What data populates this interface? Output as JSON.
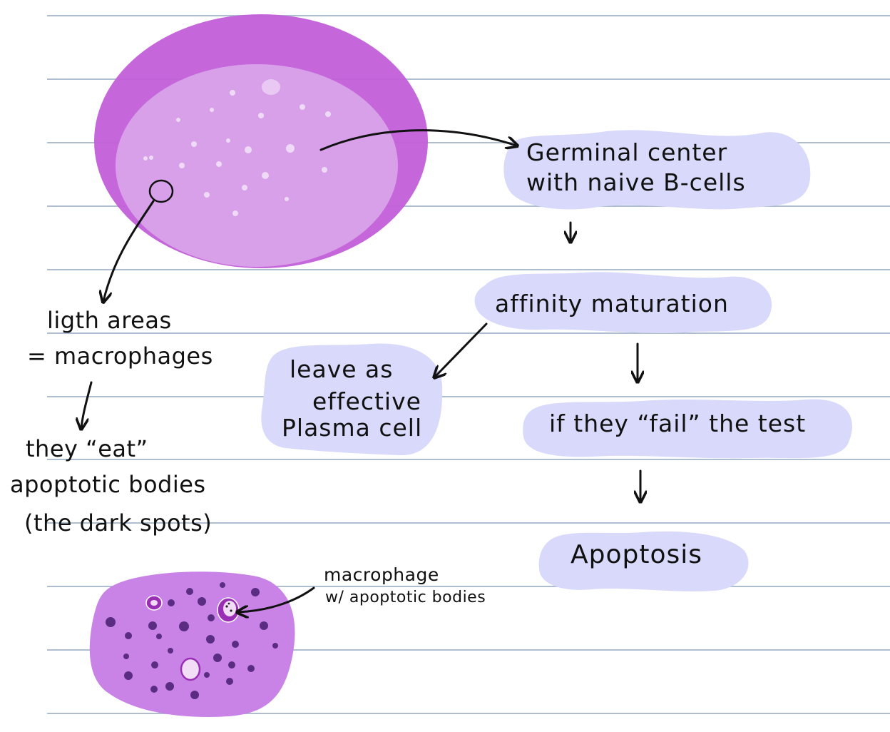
{
  "colors": {
    "ruled_line": "#aebdd0",
    "cell_outer": "#c25fd9",
    "cell_inner": "#d7a0e9",
    "bubble": "#d9d9fb",
    "tissue": "#c983e6",
    "dot": "#5a2d82",
    "ink": "#111111"
  },
  "notes": {
    "germinal_line1": "Germinal center",
    "germinal_line2": "with naive B-cells",
    "affinity": "affinity maturation",
    "leave_line1": "leave as",
    "leave_line2": "effective",
    "leave_line3": "Plasma cell",
    "fail": "if they “fail” the test",
    "apoptosis": "Apoptosis",
    "light_line1": "ligth areas",
    "light_line2": "= macrophages",
    "eat_line1": "they “eat”",
    "eat_line2": "apoptotic bodies",
    "eat_line3": "(the dark spots)",
    "macrophage_label": "macrophage",
    "macrophage_sub": "w/ apoptotic bodies"
  }
}
